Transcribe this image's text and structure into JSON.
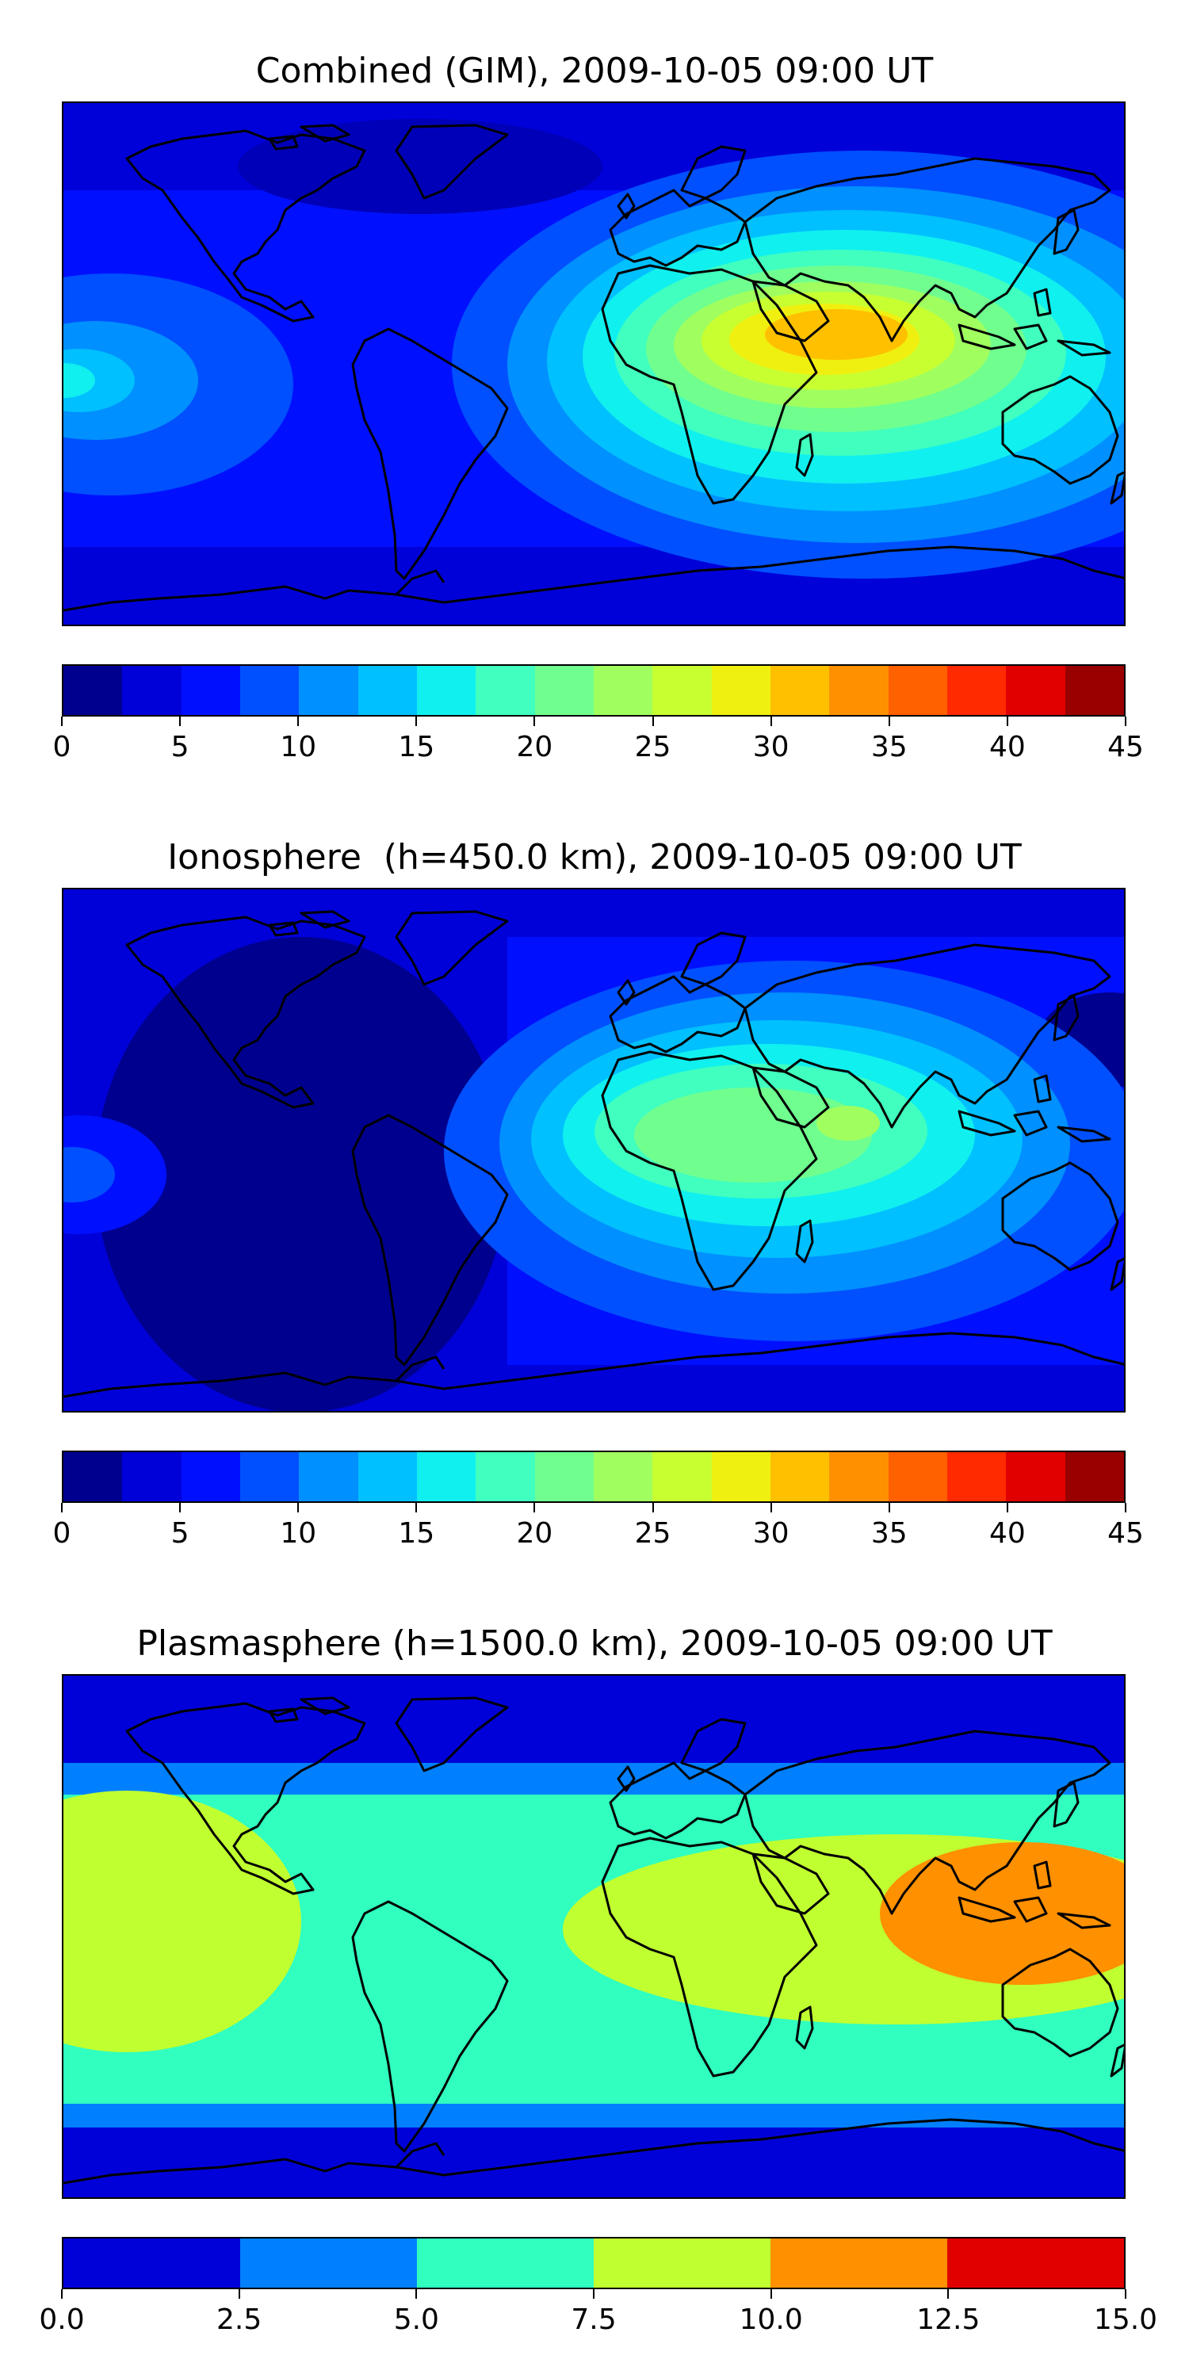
{
  "panels": [
    {
      "title": "Combined (GIM), 2009-10-05 09:00 UT",
      "colorbar_colors": [
        "#00008f",
        "#0000d9",
        "#0010ff",
        "#0050ff",
        "#0090ff",
        "#00c0ff",
        "#10f0ef",
        "#40ffbf",
        "#70ff8f",
        "#a0ff5f",
        "#c8ff30",
        "#f0f010",
        "#ffc000",
        "#ff9000",
        "#ff6000",
        "#ff2a00",
        "#e00000",
        "#990000"
      ],
      "colorbar_ticks": [
        "0",
        "5",
        "10",
        "15",
        "20",
        "25",
        "30",
        "35",
        "40",
        "45"
      ],
      "colorbar_range": [
        0,
        45
      ]
    },
    {
      "title": "Ionosphere  (h=450.0 km), 2009-10-05 09:00 UT",
      "colorbar_colors": [
        "#00008f",
        "#0000d9",
        "#0010ff",
        "#0050ff",
        "#0090ff",
        "#00c0ff",
        "#10f0ef",
        "#40ffbf",
        "#70ff8f",
        "#a0ff5f",
        "#c8ff30",
        "#f0f010",
        "#ffc000",
        "#ff9000",
        "#ff6000",
        "#ff2a00",
        "#e00000",
        "#990000"
      ],
      "colorbar_ticks": [
        "0",
        "5",
        "10",
        "15",
        "20",
        "25",
        "30",
        "35",
        "40",
        "45"
      ],
      "colorbar_range": [
        0,
        45
      ]
    },
    {
      "title": "Plasmasphere (h=1500.0 km), 2009-10-05 09:00 UT",
      "colorbar_colors": [
        "#0000d9",
        "#0080ff",
        "#30ffc0",
        "#c0ff30",
        "#ff9000",
        "#e00000"
      ],
      "colorbar_ticks": [
        "0.0",
        "2.5",
        "5.0",
        "7.5",
        "10.0",
        "12.5",
        "15.0"
      ],
      "colorbar_range": [
        0,
        15
      ]
    }
  ]
}
